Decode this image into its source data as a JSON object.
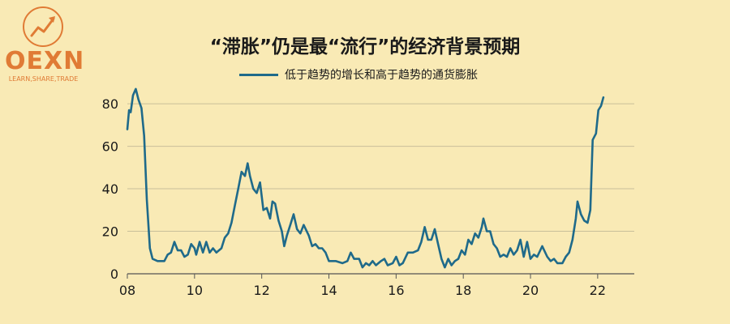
{
  "logo": {
    "name": "OEXN",
    "tagline": "LEARN,SHARE,TRADE",
    "color": "#e07b35",
    "icon": "rising-arrow-icon"
  },
  "chart_data": {
    "type": "line",
    "title": "“滞胀”仍是最“流行”的经济背景预期",
    "xlabel": "",
    "ylabel": "",
    "xlim": [
      2008,
      2022.8
    ],
    "ylim": [
      0,
      85
    ],
    "x_ticks": [
      {
        "label": "08",
        "value": 2008
      },
      {
        "label": "10",
        "value": 2010
      },
      {
        "label": "12",
        "value": 2012
      },
      {
        "label": "14",
        "value": 2014
      },
      {
        "label": "16",
        "value": 2016
      },
      {
        "label": "18",
        "value": 2018
      },
      {
        "label": "20",
        "value": 2020
      },
      {
        "label": "22",
        "value": 2022
      }
    ],
    "y_ticks": [
      0,
      20,
      40,
      60,
      80
    ],
    "grid": true,
    "legend_position": "top-center",
    "series": [
      {
        "name": "低于趋势的增长和高于趋势的通货膨胀",
        "color": "#1f6a8a",
        "points": [
          [
            2008.0,
            68
          ],
          [
            2008.05,
            77
          ],
          [
            2008.1,
            76
          ],
          [
            2008.17,
            84
          ],
          [
            2008.25,
            87
          ],
          [
            2008.33,
            82
          ],
          [
            2008.42,
            78
          ],
          [
            2008.5,
            65
          ],
          [
            2008.58,
            35
          ],
          [
            2008.67,
            12
          ],
          [
            2008.75,
            7
          ],
          [
            2008.9,
            6
          ],
          [
            2009.1,
            6
          ],
          [
            2009.2,
            9
          ],
          [
            2009.3,
            10
          ],
          [
            2009.4,
            15
          ],
          [
            2009.5,
            11
          ],
          [
            2009.6,
            11
          ],
          [
            2009.7,
            8
          ],
          [
            2009.8,
            9
          ],
          [
            2009.9,
            14
          ],
          [
            2010.0,
            12
          ],
          [
            2010.05,
            9
          ],
          [
            2010.15,
            15
          ],
          [
            2010.25,
            10
          ],
          [
            2010.35,
            15
          ],
          [
            2010.45,
            10
          ],
          [
            2010.55,
            12
          ],
          [
            2010.65,
            10
          ],
          [
            2010.8,
            12
          ],
          [
            2010.9,
            17
          ],
          [
            2011.0,
            19
          ],
          [
            2011.1,
            24
          ],
          [
            2011.2,
            32
          ],
          [
            2011.3,
            40
          ],
          [
            2011.4,
            48
          ],
          [
            2011.5,
            46
          ],
          [
            2011.58,
            52
          ],
          [
            2011.65,
            46
          ],
          [
            2011.75,
            40
          ],
          [
            2011.85,
            38
          ],
          [
            2011.95,
            43
          ],
          [
            2012.05,
            30
          ],
          [
            2012.15,
            31
          ],
          [
            2012.25,
            26
          ],
          [
            2012.32,
            34
          ],
          [
            2012.4,
            33
          ],
          [
            2012.5,
            25
          ],
          [
            2012.6,
            20
          ],
          [
            2012.67,
            13
          ],
          [
            2012.75,
            18
          ],
          [
            2012.85,
            23
          ],
          [
            2012.95,
            28
          ],
          [
            2013.05,
            21
          ],
          [
            2013.15,
            19
          ],
          [
            2013.25,
            23
          ],
          [
            2013.4,
            18
          ],
          [
            2013.5,
            13
          ],
          [
            2013.6,
            14
          ],
          [
            2013.7,
            12
          ],
          [
            2013.8,
            12
          ],
          [
            2013.9,
            10
          ],
          [
            2014.0,
            6
          ],
          [
            2014.2,
            6
          ],
          [
            2014.4,
            5
          ],
          [
            2014.55,
            6
          ],
          [
            2014.65,
            10
          ],
          [
            2014.75,
            7
          ],
          [
            2014.9,
            7
          ],
          [
            2015.0,
            3
          ],
          [
            2015.1,
            5
          ],
          [
            2015.2,
            4
          ],
          [
            2015.3,
            6
          ],
          [
            2015.4,
            4
          ],
          [
            2015.55,
            6
          ],
          [
            2015.65,
            7
          ],
          [
            2015.75,
            4
          ],
          [
            2015.9,
            5
          ],
          [
            2016.0,
            8
          ],
          [
            2016.1,
            4
          ],
          [
            2016.2,
            5
          ],
          [
            2016.35,
            10
          ],
          [
            2016.5,
            10
          ],
          [
            2016.65,
            11
          ],
          [
            2016.75,
            15
          ],
          [
            2016.85,
            22
          ],
          [
            2016.95,
            16
          ],
          [
            2017.05,
            16
          ],
          [
            2017.15,
            21
          ],
          [
            2017.25,
            14
          ],
          [
            2017.35,
            7
          ],
          [
            2017.45,
            3
          ],
          [
            2017.55,
            7
          ],
          [
            2017.65,
            4
          ],
          [
            2017.75,
            6
          ],
          [
            2017.85,
            7
          ],
          [
            2017.95,
            11
          ],
          [
            2018.05,
            9
          ],
          [
            2018.15,
            16
          ],
          [
            2018.25,
            14
          ],
          [
            2018.35,
            19
          ],
          [
            2018.45,
            17
          ],
          [
            2018.55,
            22
          ],
          [
            2018.6,
            26
          ],
          [
            2018.7,
            20
          ],
          [
            2018.8,
            20
          ],
          [
            2018.9,
            14
          ],
          [
            2019.0,
            12
          ],
          [
            2019.1,
            8
          ],
          [
            2019.2,
            9
          ],
          [
            2019.3,
            8
          ],
          [
            2019.4,
            12
          ],
          [
            2019.5,
            9
          ],
          [
            2019.6,
            11
          ],
          [
            2019.7,
            16
          ],
          [
            2019.8,
            8
          ],
          [
            2019.9,
            15
          ],
          [
            2020.0,
            7
          ],
          [
            2020.1,
            9
          ],
          [
            2020.2,
            8
          ],
          [
            2020.35,
            13
          ],
          [
            2020.5,
            8
          ],
          [
            2020.6,
            6
          ],
          [
            2020.7,
            7
          ],
          [
            2020.8,
            5
          ],
          [
            2020.95,
            5
          ],
          [
            2021.05,
            8
          ],
          [
            2021.15,
            10
          ],
          [
            2021.25,
            16
          ],
          [
            2021.35,
            26
          ],
          [
            2021.4,
            34
          ],
          [
            2021.5,
            28
          ],
          [
            2021.6,
            25
          ],
          [
            2021.7,
            24
          ],
          [
            2021.78,
            30
          ],
          [
            2021.85,
            63
          ],
          [
            2021.95,
            66
          ],
          [
            2022.02,
            77
          ],
          [
            2022.1,
            79
          ],
          [
            2022.17,
            83
          ]
        ]
      }
    ]
  }
}
